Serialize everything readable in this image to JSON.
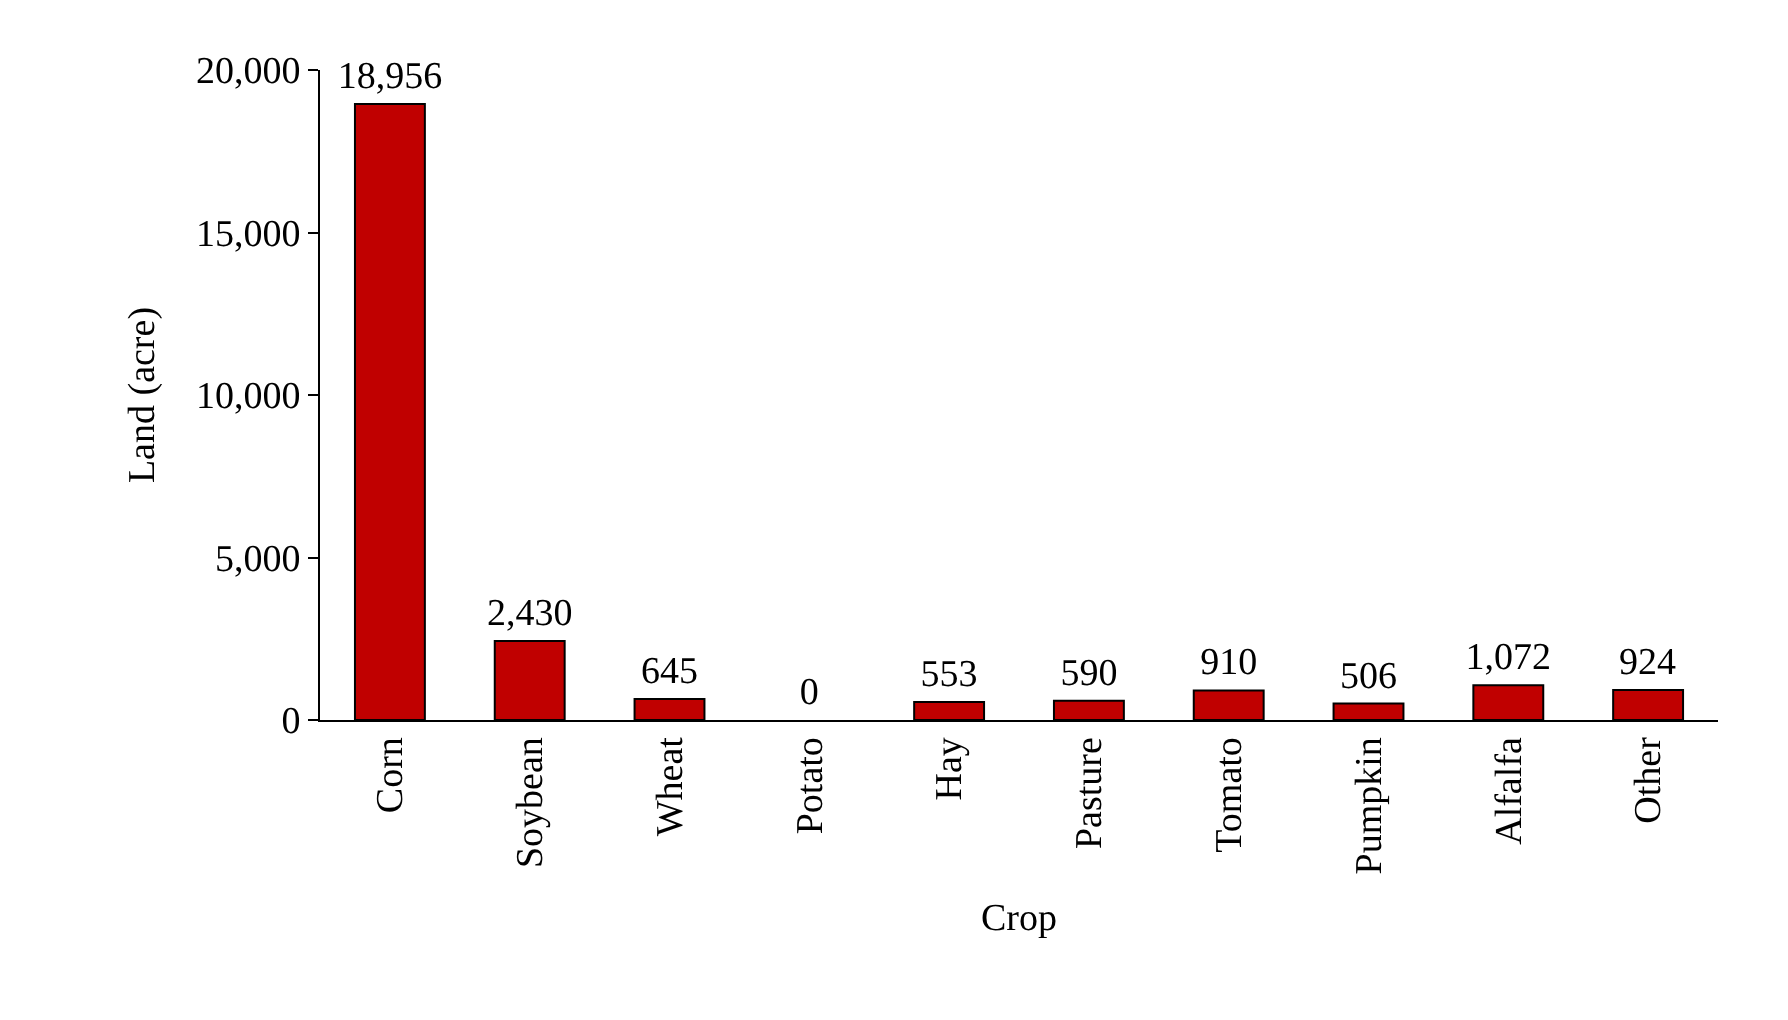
{
  "chart_data": {
    "type": "bar",
    "xlabel": "Crop",
    "ylabel": "Land (acre)",
    "categories": [
      "Corn",
      "Soybean",
      "Wheat",
      "Potato",
      "Hay",
      "Pasture",
      "Tomato",
      "Pumpkin",
      "Alfalfa",
      "Other"
    ],
    "values": [
      18956,
      2430,
      645,
      0,
      553,
      590,
      910,
      506,
      1072,
      924
    ],
    "value_labels": [
      "18,956",
      "2,430",
      "645",
      "0",
      "553",
      "590",
      "910",
      "506",
      "1,072",
      "924"
    ],
    "color": "#c00000",
    "ylim": [
      0,
      20000
    ],
    "yticks": [
      {
        "value": 0,
        "label": "0"
      },
      {
        "value": 5000,
        "label": "5,000"
      },
      {
        "value": 10000,
        "label": "10,000"
      },
      {
        "value": 15000,
        "label": "15,000"
      },
      {
        "value": 20000,
        "label": "20,000"
      }
    ],
    "legend": false
  }
}
